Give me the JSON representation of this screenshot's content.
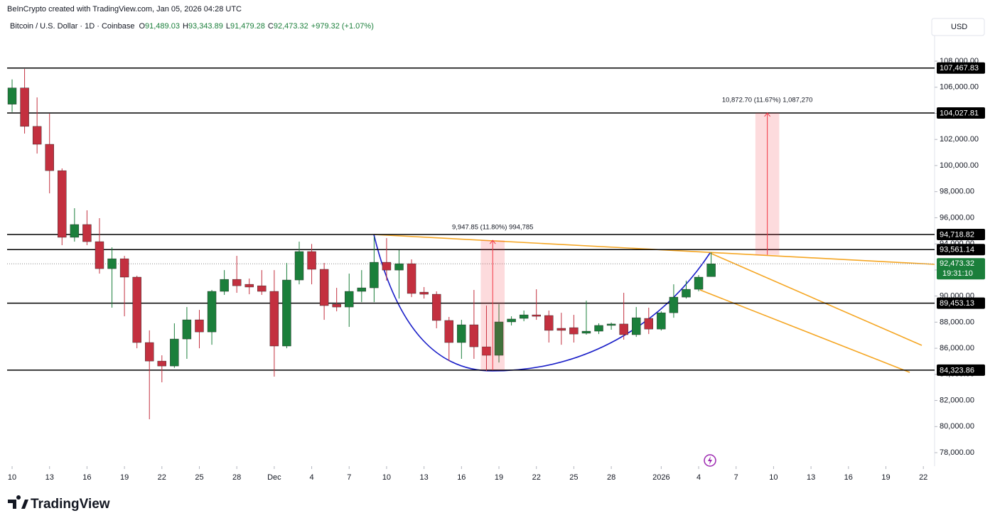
{
  "chart_data": {
    "type": "candlestick",
    "attribution": "BeInCrypto created with TradingView.com, Jan 05, 2026 04:28 UTC",
    "title": "Bitcoin / U.S. Dollar · 1D · Coinbase",
    "ohlc": [
      {
        "key": "O",
        "value": "91,489.03"
      },
      {
        "key": "H",
        "value": "93,343.89"
      },
      {
        "key": "L",
        "value": "91,479.28"
      },
      {
        "key": "C",
        "value": "92,473.32"
      }
    ],
    "change": "+979.32 (+1.07%)",
    "currency": "USD",
    "brand": "TradingView",
    "up_color": "#1b7f3b",
    "down_color": "#c3303f",
    "open": [
      104700,
      105950,
      103000,
      101630,
      99610,
      94500,
      95480,
      94170,
      92100,
      92860,
      91450,
      86440,
      85020,
      84640,
      86710,
      88180,
      87250,
      90360,
      91280,
      90900,
      90790,
      90360,
      86170,
      91230,
      93410,
      92050,
      89380,
      89160,
      90360,
      90630,
      92590,
      91990,
      92480,
      90300,
      90140,
      88130,
      86440,
      87800,
      86110,
      85460,
      88020,
      88290,
      88560,
      88510,
      87530,
      87580,
      87150,
      87310,
      87750,
      87860,
      87040,
      88290,
      87470,
      88720,
      89920,
      90520,
      91489.03
    ],
    "high": [
      106600,
      107400,
      105220,
      103970,
      99780,
      96730,
      96570,
      95970,
      93730,
      93080,
      91560,
      87370,
      85460,
      87910,
      89160,
      88940,
      90470,
      91990,
      93080,
      91340,
      91990,
      91990,
      92540,
      94170,
      93990,
      92540,
      90630,
      91720,
      91990,
      94550,
      94440,
      93520,
      92810,
      90690,
      90360,
      88400,
      88180,
      90470,
      89270,
      89380,
      88450,
      88890,
      90520,
      88890,
      88720,
      88560,
      89650,
      87910,
      87970,
      90250,
      89160,
      89110,
      88830,
      90900,
      91180,
      91610,
      93343.89
    ],
    "low": [
      104100,
      102450,
      100920,
      97870,
      93900,
      94170,
      93900,
      91720,
      89110,
      88450,
      86000,
      80560,
      83390,
      84500,
      85190,
      86000,
      86270,
      90090,
      90250,
      90140,
      90090,
      83830,
      86000,
      90900,
      90900,
      88180,
      88830,
      87640,
      89540,
      89540,
      91180,
      89810,
      89920,
      89810,
      87530,
      85020,
      85190,
      85190,
      84260,
      84910,
      87750,
      88070,
      88180,
      86440,
      86270,
      86440,
      87040,
      87090,
      87420,
      86660,
      86870,
      87090,
      87360,
      88340,
      89810,
      90360,
      91479.28
    ],
    "close": [
      105950,
      103000,
      101630,
      99610,
      94500,
      95480,
      94170,
      92100,
      92860,
      91450,
      86440,
      85020,
      84640,
      86710,
      88180,
      87250,
      90360,
      91280,
      90790,
      90690,
      90360,
      86170,
      91230,
      93410,
      92050,
      89270,
      89160,
      90360,
      90630,
      92590,
      91990,
      92480,
      90200,
      90140,
      88130,
      86440,
      87800,
      86110,
      85460,
      88020,
      88240,
      88560,
      88450,
      87370,
      87370,
      87090,
      87310,
      87750,
      87860,
      87040,
      88340,
      87470,
      88720,
      89920,
      90520,
      91450,
      92473.32
    ],
    "xlim": [
      -0.4,
      73.9
    ],
    "xticks": [
      {
        "value": 0,
        "label": "10"
      },
      {
        "value": 3,
        "label": "13"
      },
      {
        "value": 6,
        "label": "16"
      },
      {
        "value": 9,
        "label": "19"
      },
      {
        "value": 12,
        "label": "22"
      },
      {
        "value": 15,
        "label": "25"
      },
      {
        "value": 18,
        "label": "28"
      },
      {
        "value": 21,
        "label": "Dec"
      },
      {
        "value": 24,
        "label": "4"
      },
      {
        "value": 27,
        "label": "7"
      },
      {
        "value": 30,
        "label": "10"
      },
      {
        "value": 33,
        "label": "13"
      },
      {
        "value": 36,
        "label": "16"
      },
      {
        "value": 39,
        "label": "19"
      },
      {
        "value": 42,
        "label": "22"
      },
      {
        "value": 45,
        "label": "25"
      },
      {
        "value": 48,
        "label": "28"
      },
      {
        "value": 52,
        "label": "2026"
      },
      {
        "value": 55,
        "label": "4"
      },
      {
        "value": 58,
        "label": "7"
      },
      {
        "value": 61,
        "label": "10"
      },
      {
        "value": 64,
        "label": "13"
      },
      {
        "value": 67,
        "label": "16"
      },
      {
        "value": 70,
        "label": "19"
      },
      {
        "value": 73,
        "label": "22"
      }
    ],
    "ylim": [
      77000,
      110000
    ],
    "yticks": [
      {
        "value": 78000,
        "label": "78,000.00"
      },
      {
        "value": 80000,
        "label": "80,000.00"
      },
      {
        "value": 82000,
        "label": "82,000.00"
      },
      {
        "value": 84000,
        "label": "84,000.00"
      },
      {
        "value": 86000,
        "label": "86,000.00"
      },
      {
        "value": 88000,
        "label": "88,000.00"
      },
      {
        "value": 90000,
        "label": "90,000.00"
      },
      {
        "value": 92000,
        "label": "92,000.00"
      },
      {
        "value": 94000,
        "label": "94,000.00"
      },
      {
        "value": 96000,
        "label": "96,000.00"
      },
      {
        "value": 98000,
        "label": "98,000.00"
      },
      {
        "value": 100000,
        "label": "100,000.00"
      },
      {
        "value": 102000,
        "label": "102,000.00"
      },
      {
        "value": 104000,
        "label": "104,000.00"
      },
      {
        "value": 106000,
        "label": "106,000.00"
      },
      {
        "value": 108000,
        "label": "108,000.00"
      }
    ],
    "levels": [
      107467.83,
      104027.81,
      94718.82,
      93561.14,
      89453.13,
      84323.86
    ],
    "level_labels": [
      "107,467.83",
      "104,027.81",
      "94,718.82",
      "93,561.14",
      "89,453.13",
      "84,323.86"
    ],
    "last_price": 92473.32,
    "last_price_label": "92,473.32",
    "countdown": "19:31:10",
    "measures": [
      {
        "label": "9,947.85 (11.80%) 994,785",
        "low": 84324,
        "high": 94272,
        "x": [
          38,
          39
        ]
      },
      {
        "label": "10,872.70 (11.67%) 1,087,270",
        "low": 93155,
        "high": 104027.81,
        "x": [
          60,
          61
        ]
      }
    ]
  }
}
